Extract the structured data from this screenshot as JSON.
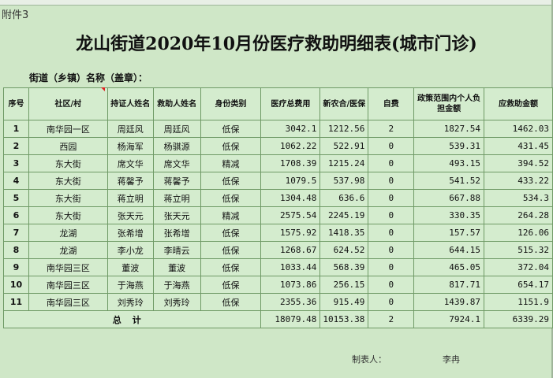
{
  "sheet": {
    "attachment_label": "附件3",
    "title": "龙山街道2020年10月份医疗救助明细表(城市门诊)",
    "street_label": "街道（乡镇）名称（盖章）：",
    "columns": [
      "序号",
      "社区/村",
      "持证人姓名",
      "救助人姓名",
      "身份类别",
      "医疗总费用",
      "新农合/医保",
      "自费",
      "政策范围内个人负担金额",
      "应救助金额"
    ],
    "rows": [
      [
        "1",
        "南华园一区",
        "周廷风",
        "周廷风",
        "低保",
        "3042.1",
        "1212.56",
        "2",
        "1827.54",
        "1462.03"
      ],
      [
        "2",
        "西园",
        "杨海军",
        "杨骐源",
        "低保",
        "1062.22",
        "522.91",
        "0",
        "539.31",
        "431.45"
      ],
      [
        "3",
        "东大街",
        "席文华",
        "席文华",
        "精减",
        "1708.39",
        "1215.24",
        "0",
        "493.15",
        "394.52"
      ],
      [
        "4",
        "东大街",
        "蒋馨予",
        "蒋馨予",
        "低保",
        "1079.5",
        "537.98",
        "0",
        "541.52",
        "433.22"
      ],
      [
        "5",
        "东大街",
        "蒋立明",
        "蒋立明",
        "低保",
        "1304.48",
        "636.6",
        "0",
        "667.88",
        "534.3"
      ],
      [
        "6",
        "东大街",
        "张天元",
        "张天元",
        "精减",
        "2575.54",
        "2245.19",
        "0",
        "330.35",
        "264.28"
      ],
      [
        "7",
        "龙湖",
        "张希增",
        "张希增",
        "低保",
        "1575.92",
        "1418.35",
        "0",
        "157.57",
        "126.06"
      ],
      [
        "8",
        "龙湖",
        "李小龙",
        "李晴云",
        "低保",
        "1268.67",
        "624.52",
        "0",
        "644.15",
        "515.32"
      ],
      [
        "9",
        "南华园三区",
        "董波",
        "董波",
        "低保",
        "1033.44",
        "568.39",
        "0",
        "465.05",
        "372.04"
      ],
      [
        "10",
        "南华园三区",
        "于海燕",
        "于海燕",
        "低保",
        "1073.86",
        "256.15",
        "0",
        "817.71",
        "654.17"
      ],
      [
        "11",
        "南华园三区",
        "刘秀玲",
        "刘秀玲",
        "低保",
        "2355.36",
        "915.49",
        "0",
        "1439.87",
        "1151.9"
      ]
    ],
    "total": {
      "label": "总计",
      "medical_total": "18079.48",
      "insurance": "10153.38",
      "self_paid": "2",
      "policy_burden": "7924.1",
      "relief": "6339.29"
    },
    "footer": {
      "preparer_label": "制表人：",
      "preparer_name": "李冉"
    }
  }
}
